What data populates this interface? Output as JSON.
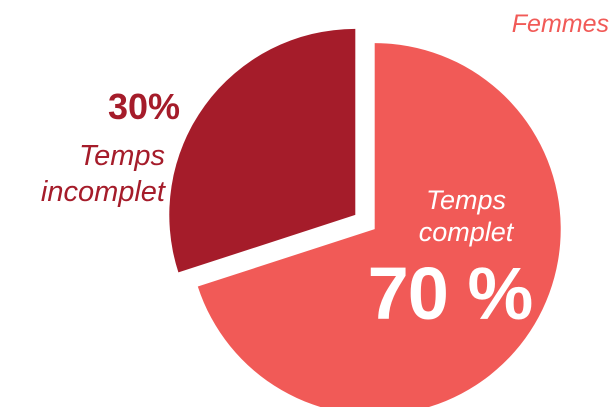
{
  "colors": {
    "dark": "#a51c2a",
    "light": "#f15a57",
    "title": "#f15a57"
  },
  "chart_data": {
    "type": "pie",
    "title": "Femmes",
    "slices": [
      {
        "label": "Temps complet",
        "value": 70,
        "display": "70 %",
        "color": "#f15a57"
      },
      {
        "label": "Temps incomplet",
        "value": 30,
        "display": "30%",
        "color": "#a51c2a"
      }
    ]
  }
}
